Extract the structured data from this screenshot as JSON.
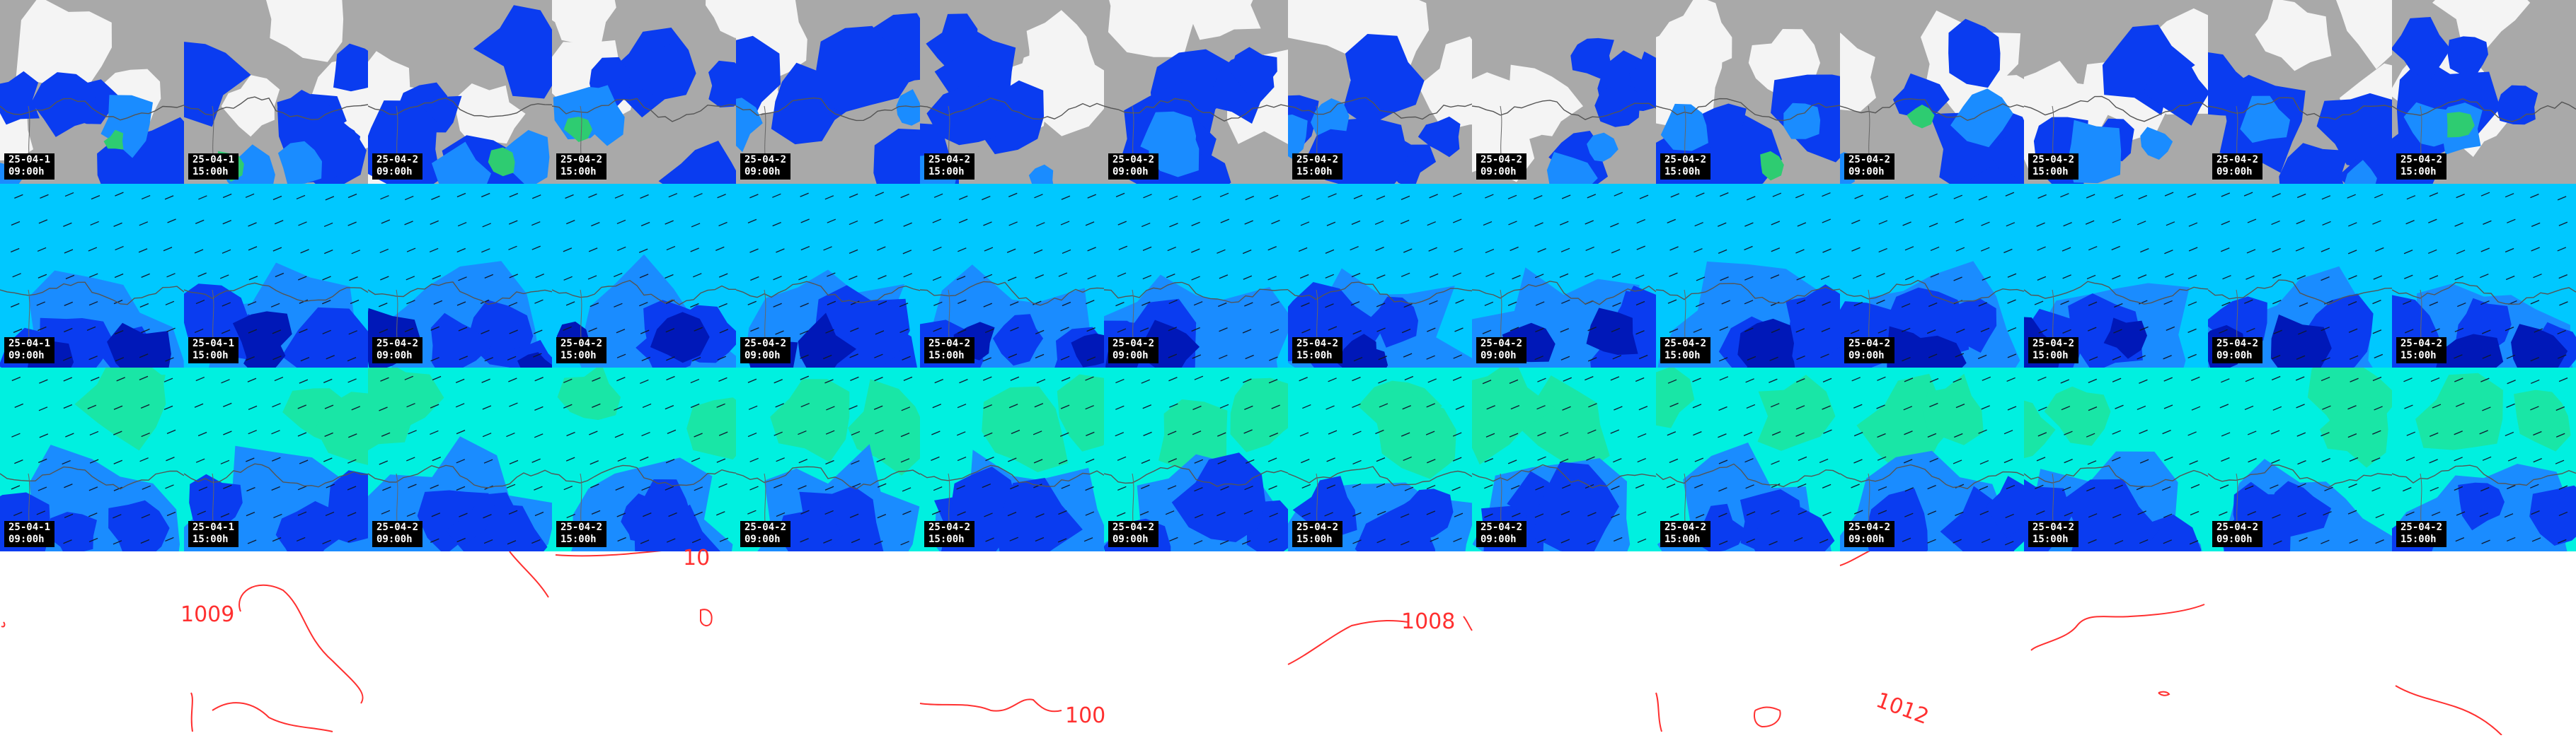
{
  "layout": {
    "rows": [
      {
        "name": "cloud-cover-row",
        "field": "cloud"
      },
      {
        "name": "wind-row-upper",
        "field": "wind"
      },
      {
        "name": "wind-row-lower",
        "field": "wind2"
      }
    ],
    "columns": 14
  },
  "frames": [
    {
      "date": "25-04-1",
      "time": "09:00h"
    },
    {
      "date": "25-04-1",
      "time": "15:00h"
    },
    {
      "date": "25-04-2",
      "time": "09:00h"
    },
    {
      "date": "25-04-2",
      "time": "15:00h"
    },
    {
      "date": "25-04-2",
      "time": "09:00h"
    },
    {
      "date": "25-04-2",
      "time": "15:00h"
    },
    {
      "date": "25-04-2",
      "time": "09:00h"
    },
    {
      "date": "25-04-2",
      "time": "15:00h"
    },
    {
      "date": "25-04-2",
      "time": "09:00h"
    },
    {
      "date": "25-04-2",
      "time": "15:00h"
    },
    {
      "date": "25-04-2",
      "time": "09:00h"
    },
    {
      "date": "25-04-2",
      "time": "15:00h"
    },
    {
      "date": "25-04-2",
      "time": "09:00h"
    },
    {
      "date": "25-04-2",
      "time": "15:00h"
    }
  ],
  "isobar_labels": [
    "1009",
    "1008",
    "1012",
    "100",
    "10"
  ],
  "colors": {
    "cloud_gray": "#a9a9a9",
    "cloud_white": "#f4f4f4",
    "blue_light": "#1a8cff",
    "blue": "#0a3cf0",
    "blue_dark": "#0018b8",
    "green": "#2ecc71",
    "cyan": "#00c8ff",
    "teal": "#00f0e0",
    "isobar": "#ff3030"
  }
}
